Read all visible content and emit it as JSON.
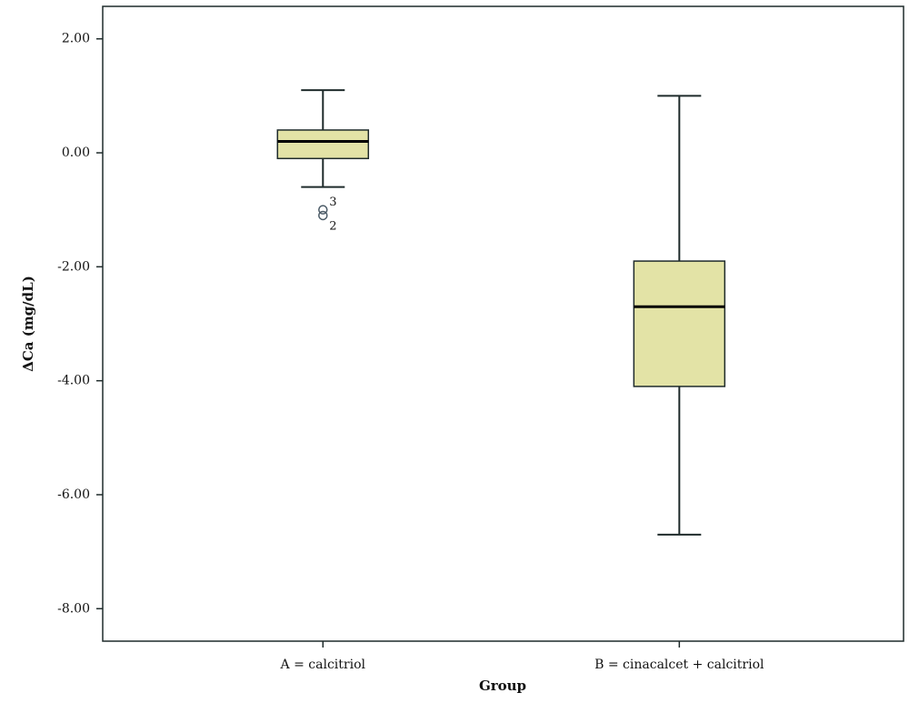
{
  "chart_data": {
    "type": "box",
    "x_label": "Group",
    "y_label": "ΔCa (mg/dL)",
    "categories": [
      "A = calcitriol",
      "B = cinacalcet + calcitriol"
    ],
    "boxes": [
      {
        "min": -0.6,
        "q1": -0.1,
        "median": 0.2,
        "q3": 0.4,
        "max": 1.1,
        "outliers": [
          {
            "value": -1.0,
            "label": "3"
          },
          {
            "value": -1.1,
            "label": "2"
          }
        ]
      },
      {
        "min": -6.7,
        "q1": -4.1,
        "median": -2.7,
        "q3": -1.9,
        "max": 1.0,
        "outliers": []
      }
    ],
    "color": "#e3e3a6",
    "ylim": [
      -8.57,
      2.57
    ],
    "yticks": [
      {
        "value": 2,
        "label": "2.00"
      },
      {
        "value": 0,
        "label": "0.00"
      },
      {
        "value": -2,
        "label": "-2.00"
      },
      {
        "value": -4,
        "label": "-4.00"
      },
      {
        "value": -6,
        "label": "-6.00"
      },
      {
        "value": -8,
        "label": "-8.00"
      }
    ]
  }
}
